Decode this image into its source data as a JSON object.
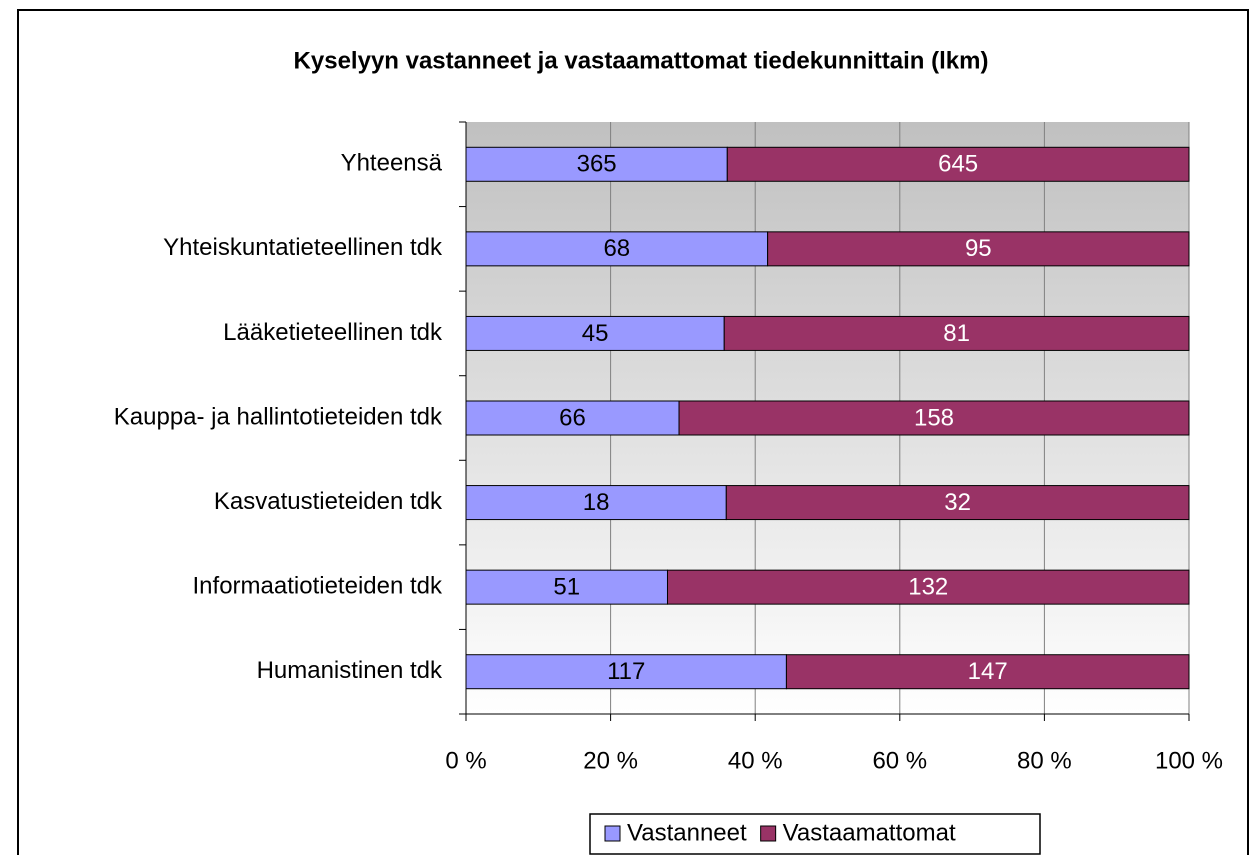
{
  "chart_data": {
    "type": "bar",
    "orientation": "horizontal",
    "stacking": "percent",
    "title": "Kyselyyn vastanneet ja vastaamattomat tiedekunnittain (lkm)",
    "categories": [
      "Yhteensä",
      "Yhteiskuntatieteellinen tdk",
      "Lääketieteellinen tdk",
      "Kauppa- ja hallintotieteiden tdk",
      "Kasvatustieteiden tdk",
      "Informaatiotieteiden tdk",
      "Humanistinen tdk"
    ],
    "series": [
      {
        "name": "Vastanneet",
        "color": "#9999ff",
        "label_color": "#000000",
        "values": [
          365,
          68,
          45,
          66,
          18,
          51,
          117
        ]
      },
      {
        "name": "Vastaamattomat",
        "color": "#993366",
        "label_color": "#ffffff",
        "values": [
          645,
          95,
          81,
          158,
          32,
          132,
          147
        ]
      }
    ],
    "xlim": [
      0,
      100
    ],
    "xticks": [
      {
        "value": 0,
        "label": "0 %"
      },
      {
        "value": 20,
        "label": "20 %"
      },
      {
        "value": 40,
        "label": "40 %"
      },
      {
        "value": 60,
        "label": "60 %"
      },
      {
        "value": 80,
        "label": "80 %"
      },
      {
        "value": 100,
        "label": "100 %"
      }
    ],
    "grid": true,
    "legend": "bottom"
  }
}
